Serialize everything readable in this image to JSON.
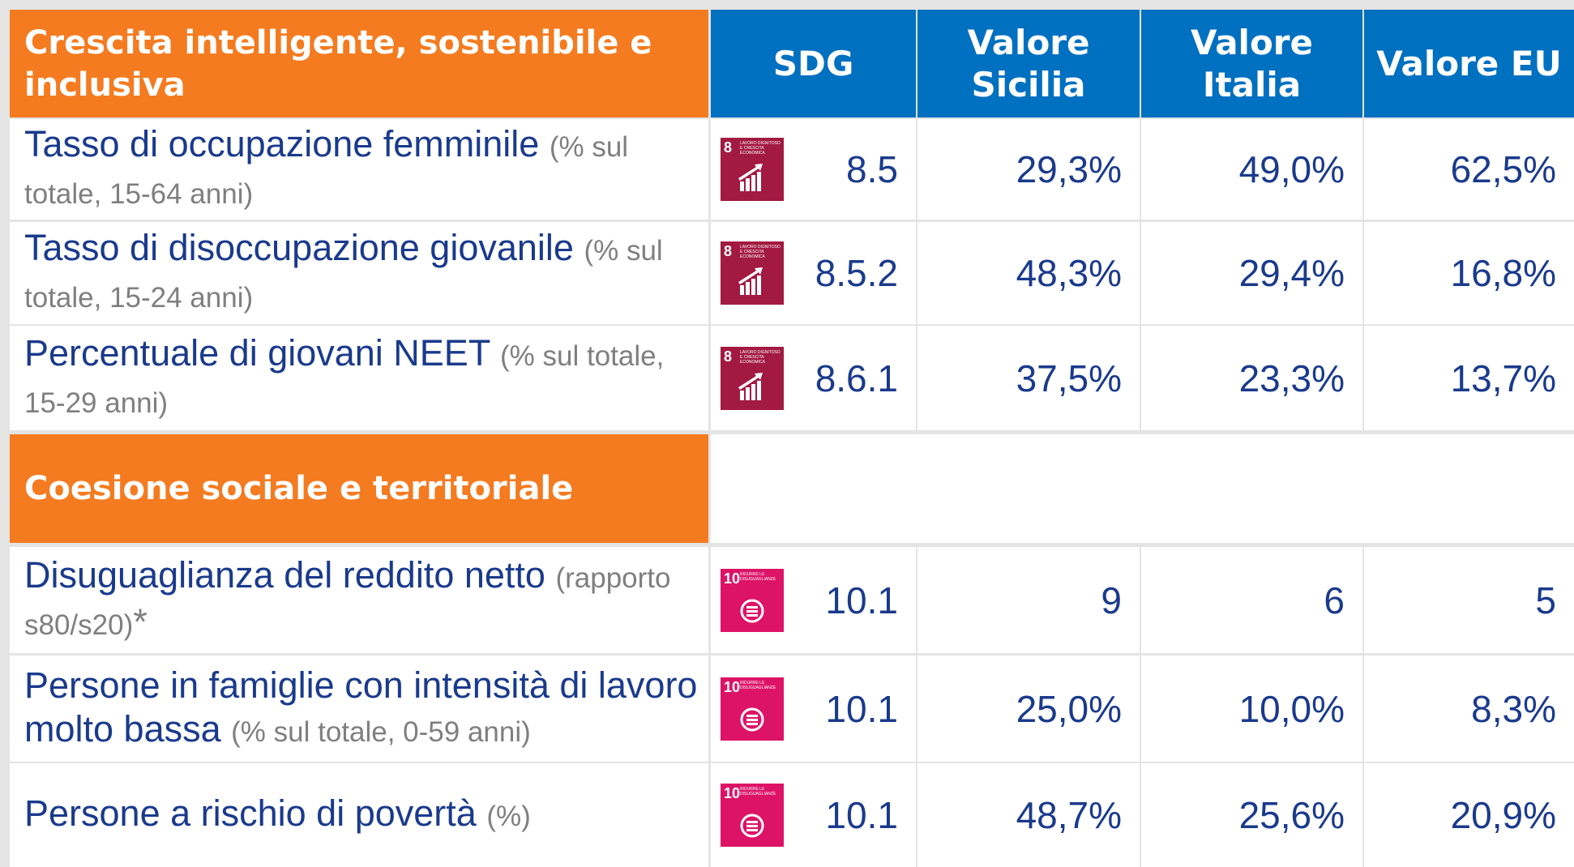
{
  "columns": [
    "SDG",
    "Valore Sicilia",
    "Valore Italia",
    "Valore EU"
  ],
  "sections": [
    {
      "title": "Crescita intelligente, sostenibile e inclusiva",
      "rows": [
        {
          "label": "Tasso di occupazione femminile",
          "note": "(% sul totale, 15-64 anni)",
          "icon": {
            "number": "8",
            "text": "LAVORO DIGNITOSO E CRESCITA ECONOMICA"
          },
          "sdg": "8.5",
          "sicilia": "29,3%",
          "italia": "49,0%",
          "eu": "62,5%"
        },
        {
          "label": "Tasso di disoccupazione giovanile",
          "note": "(% sul totale, 15-24 anni)",
          "icon": {
            "number": "8",
            "text": "LAVORO DIGNITOSO E CRESCITA ECONOMICA"
          },
          "sdg": "8.5.2",
          "sicilia": "48,3%",
          "italia": "29,4%",
          "eu": "16,8%"
        },
        {
          "label": "Percentuale di giovani NEET",
          "note": "(% sul totale, 15-29 anni)",
          "icon": {
            "number": "8",
            "text": "LAVORO DIGNITOSO E CRESCITA ECONOMICA"
          },
          "sdg": "8.6.1",
          "sicilia": "37,5%",
          "italia": "23,3%",
          "eu": "13,7%"
        }
      ]
    },
    {
      "title": "Coesione sociale e territoriale",
      "rows": [
        {
          "label": "Disuguaglianza del reddito netto",
          "note": "(rapporto s80/s20)",
          "mark": "*",
          "icon": {
            "number": "10",
            "text": "RIDURRE LE DISUGUAGLIANZE"
          },
          "sdg": "10.1",
          "sicilia": "9",
          "italia": "6",
          "eu": "5"
        },
        {
          "label": "Persone in famiglie con intensità di lavoro molto bassa",
          "note": "(% sul totale, 0-59 anni)",
          "icon": {
            "number": "10",
            "text": "RIDURRE LE DISUGUAGLIANZE"
          },
          "sdg": "10.1",
          "sicilia": "25,0%",
          "italia": "10,0%",
          "eu": "8,3%"
        },
        {
          "label": "Persone a rischio di povertà",
          "note": "(%)",
          "icon": {
            "number": "10",
            "text": "RIDURRE LE DISUGUAGLIANZE"
          },
          "sdg": "10.1",
          "sicilia": "48,7%",
          "italia": "25,6%",
          "eu": "20,9%"
        }
      ]
    }
  ]
}
